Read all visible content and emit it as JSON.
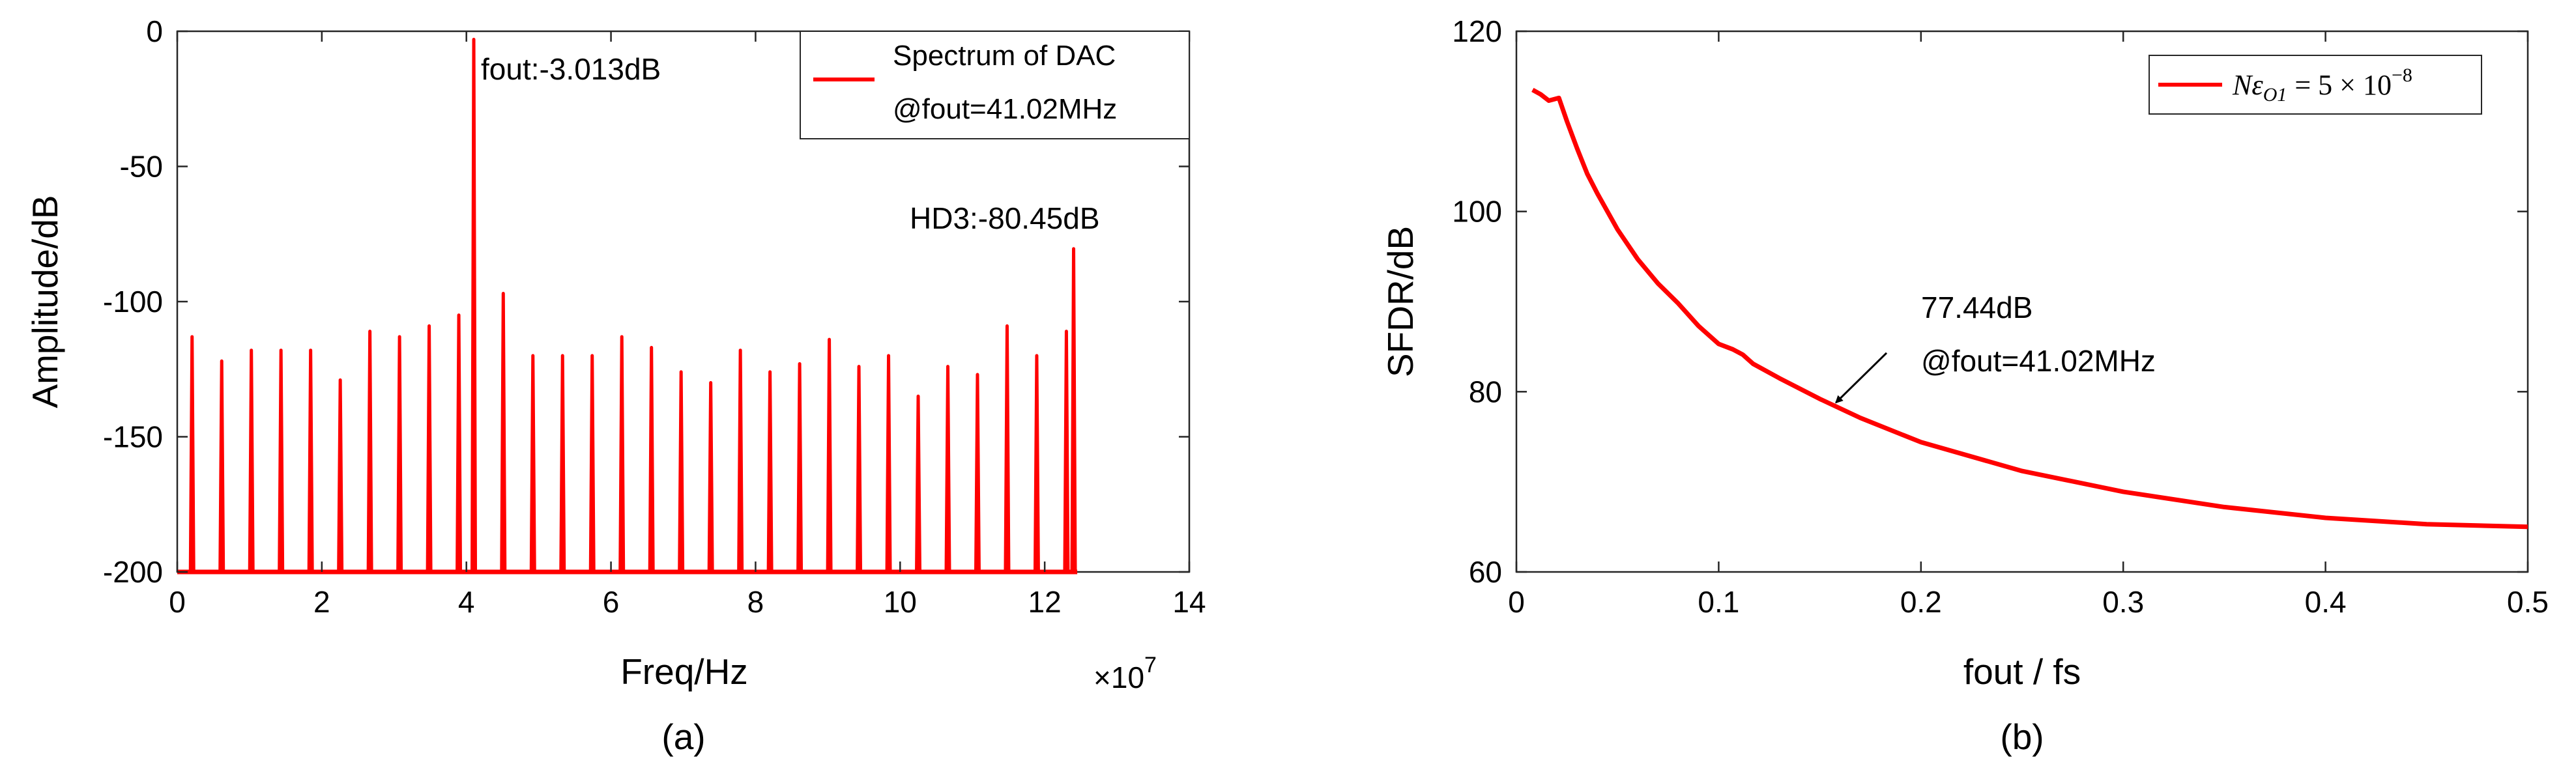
{
  "chart_data": [
    {
      "id": "a",
      "type": "line",
      "subcaption": "(a)",
      "xlabel": "Freq/Hz",
      "ylabel": "Amplitude/dB",
      "x_exponent_label": "×10",
      "x_exponent_power": "7",
      "xlim": [
        0,
        14
      ],
      "ylim": [
        -200,
        0
      ],
      "xticks": [
        0,
        2,
        4,
        6,
        8,
        10,
        12,
        14
      ],
      "yticks": [
        0,
        -50,
        -100,
        -150,
        -200
      ],
      "x_tick_labels": [
        "0",
        "2",
        "4",
        "6",
        "8",
        "10",
        "12",
        "14"
      ],
      "y_tick_labels": [
        "0",
        "-50",
        "-100",
        "-150",
        "-200"
      ],
      "grid": false,
      "legend_position": "top-right",
      "legend": [
        "Spectrum of DAC",
        "@fout=41.02MHz"
      ],
      "color": "#ff0000",
      "floor": -200,
      "x_end": 12.45,
      "peak_width": 0.045,
      "spikes": [
        {
          "x": 0.205,
          "y": -113
        },
        {
          "x": 0.615,
          "y": -122
        },
        {
          "x": 1.025,
          "y": -118
        },
        {
          "x": 1.435,
          "y": -118
        },
        {
          "x": 1.845,
          "y": -118
        },
        {
          "x": 2.255,
          "y": -129
        },
        {
          "x": 2.665,
          "y": -111
        },
        {
          "x": 3.075,
          "y": -113
        },
        {
          "x": 3.485,
          "y": -109
        },
        {
          "x": 3.895,
          "y": -105
        },
        {
          "x": 4.102,
          "y": -3.013
        },
        {
          "x": 4.51,
          "y": -97
        },
        {
          "x": 4.92,
          "y": -120
        },
        {
          "x": 5.33,
          "y": -120
        },
        {
          "x": 5.74,
          "y": -120
        },
        {
          "x": 6.15,
          "y": -113
        },
        {
          "x": 6.56,
          "y": -117
        },
        {
          "x": 6.97,
          "y": -126
        },
        {
          "x": 7.38,
          "y": -130
        },
        {
          "x": 7.79,
          "y": -118
        },
        {
          "x": 8.2,
          "y": -126
        },
        {
          "x": 8.61,
          "y": -123
        },
        {
          "x": 9.02,
          "y": -114
        },
        {
          "x": 9.43,
          "y": -124
        },
        {
          "x": 9.84,
          "y": -120
        },
        {
          "x": 10.25,
          "y": -135
        },
        {
          "x": 10.66,
          "y": -124
        },
        {
          "x": 11.07,
          "y": -127
        },
        {
          "x": 11.48,
          "y": -109
        },
        {
          "x": 11.89,
          "y": -120
        },
        {
          "x": 12.3,
          "y": -111
        },
        {
          "x": 12.4,
          "y": -80.45
        }
      ],
      "annotations": [
        {
          "text": "fout:-3.013dB",
          "x": 4.35,
          "y": -15
        },
        {
          "text": "HD3:-80.45dB",
          "x": 11.05,
          "y": -70
        }
      ]
    },
    {
      "id": "b",
      "type": "line",
      "subcaption": "(b)",
      "xlabel": "fout / fs",
      "ylabel": "SFDR/dB",
      "xlim": [
        0,
        0.5
      ],
      "ylim": [
        60,
        120
      ],
      "xticks": [
        0,
        0.1,
        0.2,
        0.3,
        0.4,
        0.5
      ],
      "yticks": [
        60,
        80,
        100,
        120
      ],
      "x_tick_labels": [
        "0",
        "0.1",
        "0.2",
        "0.3",
        "0.4",
        "0.5"
      ],
      "y_tick_labels": [
        "60",
        "80",
        "100",
        "120"
      ],
      "grid": false,
      "legend_position": "top-right",
      "legend_math": {
        "lhs": "Nε",
        "sub": "O1",
        "rhs": "= 5 × 10",
        "exp": "−8"
      },
      "color": "#ff0000",
      "series": [
        {
          "name": "SFDR",
          "x": [
            0.008,
            0.012,
            0.016,
            0.021,
            0.025,
            0.03,
            0.035,
            0.04,
            0.05,
            0.06,
            0.07,
            0.08,
            0.09,
            0.1,
            0.107,
            0.112,
            0.117,
            0.13,
            0.15,
            0.17,
            0.2,
            0.25,
            0.3,
            0.35,
            0.4,
            0.45,
            0.5
          ],
          "y": [
            113.5,
            113,
            112.3,
            112.6,
            110,
            107,
            104.2,
            102,
            98,
            94.7,
            92,
            89.8,
            87.3,
            85.3,
            84.7,
            84.1,
            83.1,
            81.5,
            79.2,
            77.1,
            74.4,
            71.2,
            68.9,
            67.2,
            66,
            65.3,
            65
          ]
        }
      ],
      "annotations": [
        {
          "text": "77.44dB",
          "x": 0.2,
          "y": 88.5
        },
        {
          "text": "@fout=41.02MHz",
          "x": 0.2,
          "y": 81.8
        }
      ],
      "arrow": {
        "from": [
          0.183,
          84.3
        ],
        "to": [
          0.158,
          78.8
        ]
      }
    }
  ]
}
